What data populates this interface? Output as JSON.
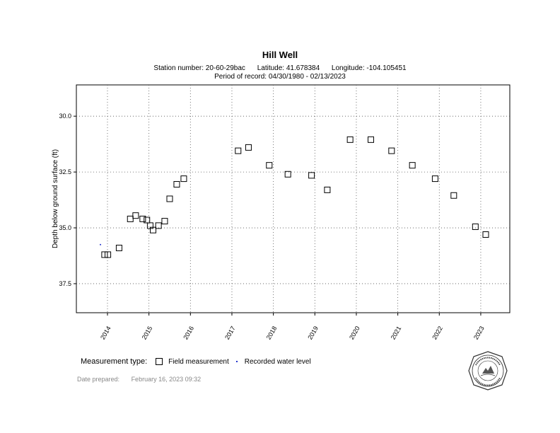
{
  "header": {
    "title": "Hill Well",
    "station": "Station number: 20-60-29bac",
    "latitude": "Latitude: 41.678384",
    "longitude": "Longitude: -104.105451",
    "period": "Period of record: 04/30/1980 - 02/13/2023"
  },
  "legend": {
    "title": "Measurement type:",
    "field": "Field measurement",
    "recorded": "Recorded water level"
  },
  "footer": {
    "prepared_label": "Date prepared:",
    "prepared_value": "February 16, 2023 09:32"
  },
  "seal": {
    "text": "Wyoming State Engineer's Office"
  },
  "colors": {
    "recorded": "#2233cc",
    "grid": "#555555"
  },
  "chart_data": {
    "type": "scatter",
    "xlabel": "",
    "ylabel": "Depth below ground surface (ft)",
    "ylim": [
      38.8,
      28.6
    ],
    "y_inverted": true,
    "xlim": [
      2013.25,
      2023.7
    ],
    "x_ticks": [
      2014,
      2015,
      2016,
      2017,
      2018,
      2019,
      2020,
      2021,
      2022,
      2023
    ],
    "x_tick_labels": [
      "2014",
      "2015",
      "2016",
      "2017",
      "2018",
      "2019",
      "2020",
      "2021",
      "2022",
      "2023"
    ],
    "y_ticks": [
      30.0,
      32.5,
      35.0,
      37.5
    ],
    "y_tick_labels": [
      "30.0",
      "32.5",
      "35.0",
      "37.5"
    ],
    "grid": true,
    "legend_position": "bottom-left",
    "series": [
      {
        "name": "Field measurement",
        "marker": "square",
        "points": [
          [
            2013.93,
            36.2
          ],
          [
            2014.01,
            36.2
          ],
          [
            2014.28,
            35.9
          ],
          [
            2014.55,
            34.6
          ],
          [
            2014.68,
            34.45
          ],
          [
            2014.85,
            34.6
          ],
          [
            2014.95,
            34.65
          ],
          [
            2015.03,
            34.9
          ],
          [
            2015.1,
            35.1
          ],
          [
            2015.23,
            34.9
          ],
          [
            2015.38,
            34.7
          ],
          [
            2015.5,
            33.7
          ],
          [
            2015.67,
            33.05
          ],
          [
            2015.84,
            32.8
          ],
          [
            2017.15,
            31.55
          ],
          [
            2017.4,
            31.4
          ],
          [
            2017.9,
            32.2
          ],
          [
            2018.35,
            32.6
          ],
          [
            2018.92,
            32.65
          ],
          [
            2019.3,
            33.3
          ],
          [
            2019.85,
            31.05
          ],
          [
            2020.35,
            31.05
          ],
          [
            2020.85,
            31.55
          ],
          [
            2021.35,
            32.2
          ],
          [
            2021.9,
            32.8
          ],
          [
            2022.35,
            33.55
          ],
          [
            2022.87,
            34.95
          ],
          [
            2023.12,
            35.3
          ]
        ]
      },
      {
        "name": "Recorded water level",
        "marker": "dot",
        "points": [
          [
            2013.83,
            35.75
          ]
        ]
      }
    ]
  }
}
